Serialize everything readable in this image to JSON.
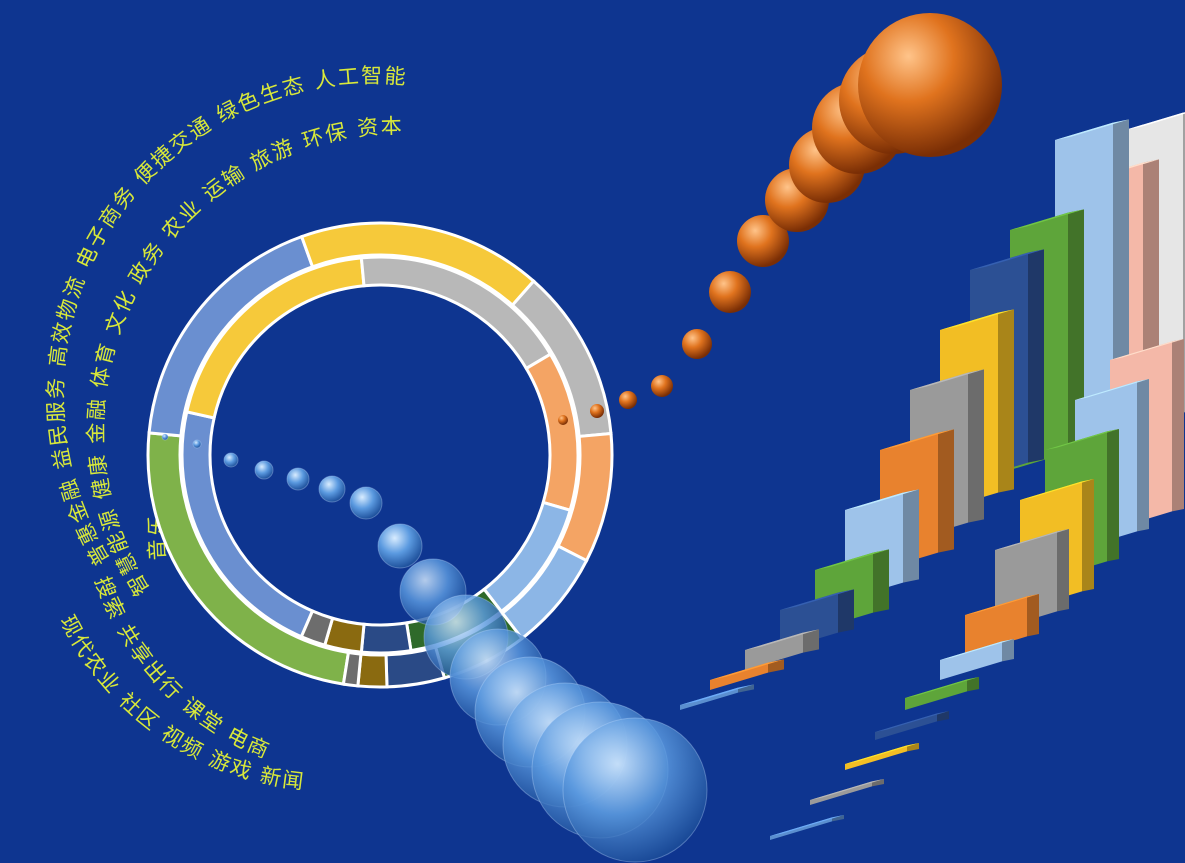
{
  "text_arcs": {
    "outer": "普惠金融  益民服务  高效物流  电子商务  便捷交通  绿色生态  人工智能",
    "middle": "智慧能源  健康  金融  体育  文化  政务  农业  运输  旅游  环保  资本",
    "inner": "音乐  教育",
    "left_lower": "现代农业  社区  视频  游戏  新闻",
    "left_bottom": "搜索  共享出行  课堂  电商"
  },
  "ring_colors": [
    "#7fb24a",
    "#6a8fd0",
    "#f6c93a",
    "#b8b8b8",
    "#f4a464",
    "#8cb6e6",
    "#2f6a2a",
    "#2a4a86",
    "#8a6a10",
    "#6d6d6d",
    "#a64a18",
    "#3a6ea8",
    "#75b0e0",
    "#4a7a2a"
  ],
  "ring_outer_values": [
    24,
    18,
    17,
    12,
    9,
    7,
    6,
    4,
    2,
    1
  ],
  "ring_inner_values": [
    22,
    20,
    18,
    13,
    10,
    8,
    4,
    3,
    2
  ],
  "sphere_colors": {
    "orange": "#e0731e",
    "blue": "#5b9ae0"
  },
  "bar_colors": [
    "#5b8fcf",
    "#e8822e",
    "#9a9a9a",
    "#f2be24",
    "#2c5094",
    "#5ea53a",
    "#9ec3ea",
    "#f4b8a8",
    "#e6e6e6"
  ]
}
